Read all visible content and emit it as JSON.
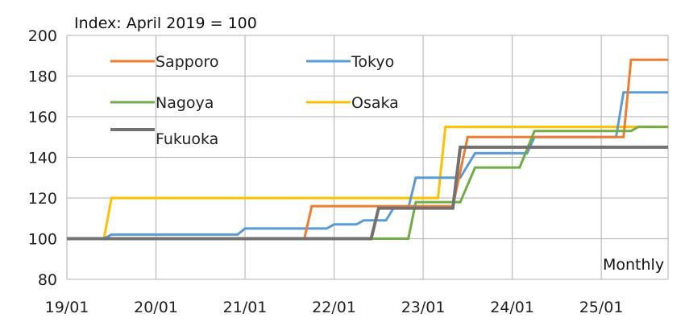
{
  "chart_data": {
    "type": "line",
    "title": "Index: April 2019 = 100",
    "note": "Monthly",
    "xlabel": "",
    "ylabel": "",
    "ylim": [
      80,
      200
    ],
    "yticks": [
      80,
      100,
      120,
      140,
      160,
      180,
      200
    ],
    "xlim": [
      "2019-01",
      "2025-10"
    ],
    "xticks": [
      "19/01",
      "20/01",
      "21/01",
      "22/01",
      "23/01",
      "24/01",
      "25/01"
    ],
    "grid": "vertical and horizontal",
    "legend_placement": "top-left",
    "series": [
      {
        "name": "Sapporo",
        "color": "#ED7D31",
        "points": [
          [
            "2019-01",
            100
          ],
          [
            "2021-09",
            100
          ],
          [
            "2021-10",
            116
          ],
          [
            "2023-05",
            116
          ],
          [
            "2023-07",
            150
          ],
          [
            "2025-04",
            150
          ],
          [
            "2025-05",
            188
          ],
          [
            "2025-10",
            188
          ]
        ]
      },
      {
        "name": "Tokyo",
        "color": "#5B9BD5",
        "points": [
          [
            "2019-01",
            100
          ],
          [
            "2019-06",
            100
          ],
          [
            "2019-07",
            102
          ],
          [
            "2020-12",
            102
          ],
          [
            "2021-01",
            105
          ],
          [
            "2021-12",
            105
          ],
          [
            "2022-01",
            107
          ],
          [
            "2022-04",
            107
          ],
          [
            "2022-05",
            109
          ],
          [
            "2022-08",
            109
          ],
          [
            "2022-09",
            115
          ],
          [
            "2022-11",
            115
          ],
          [
            "2022-12",
            130
          ],
          [
            "2023-06",
            130
          ],
          [
            "2023-08",
            142
          ],
          [
            "2024-03",
            142
          ],
          [
            "2024-04",
            150
          ],
          [
            "2025-03",
            150
          ],
          [
            "2025-04",
            172
          ],
          [
            "2025-10",
            172
          ]
        ]
      },
      {
        "name": "Nagoya",
        "color": "#70AD47",
        "points": [
          [
            "2019-01",
            100
          ],
          [
            "2022-07",
            100
          ],
          [
            "2022-11",
            100
          ],
          [
            "2022-12",
            118
          ],
          [
            "2023-06",
            118
          ],
          [
            "2023-08",
            135
          ],
          [
            "2024-02",
            135
          ],
          [
            "2024-04",
            153
          ],
          [
            "2025-05",
            153
          ],
          [
            "2025-06",
            155
          ],
          [
            "2025-10",
            155
          ]
        ]
      },
      {
        "name": "Osaka",
        "color": "#FFC000",
        "points": [
          [
            "2019-01",
            100
          ],
          [
            "2019-06",
            100
          ],
          [
            "2019-07",
            120
          ],
          [
            "2023-03",
            120
          ],
          [
            "2023-04",
            155
          ],
          [
            "2025-10",
            155
          ]
        ]
      },
      {
        "name": "Fukuoka",
        "color": "#767171",
        "points": [
          [
            "2019-01",
            100
          ],
          [
            "2022-06",
            100
          ],
          [
            "2022-07",
            115
          ],
          [
            "2023-05",
            115
          ],
          [
            "2023-06",
            145
          ],
          [
            "2025-10",
            145
          ]
        ]
      }
    ]
  }
}
